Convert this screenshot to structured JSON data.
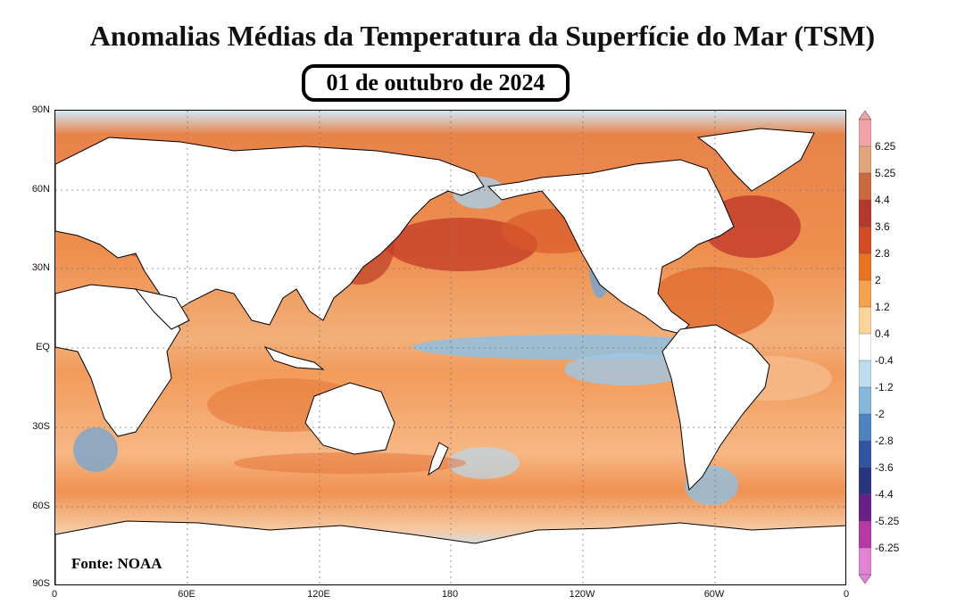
{
  "title": "Anomalias Médias da Temperatura da Superfície do Mar (TSM)",
  "date": "01 de outubro de 2024",
  "source": "Fonte: NOAA",
  "lat_labels": [
    "90N",
    "60N",
    "30N",
    "EQ",
    "30S",
    "60S",
    "90S"
  ],
  "lon_labels": [
    "0",
    "60E",
    "120E",
    "180",
    "120W",
    "60W",
    "0"
  ],
  "colorbar": {
    "ticks": [
      "6.25",
      "5.25",
      "4.4",
      "3.6",
      "2.8",
      "2",
      "1.2",
      "0.4",
      "-0.4",
      "-1.2",
      "-2",
      "-2.8",
      "-3.6",
      "-4.4",
      "-5.25",
      "-6.25"
    ],
    "colors": [
      "#f3a3a6",
      "#e3a47c",
      "#c96a3e",
      "#b5382c",
      "#d24b25",
      "#e8741f",
      "#f5a24f",
      "#fbd49a",
      "#ffffff",
      "#bcdcf0",
      "#86b8dc",
      "#4e83c1",
      "#2f55a0",
      "#27347e",
      "#6a1f86",
      "#b53aa8",
      "#e283d6"
    ]
  }
}
